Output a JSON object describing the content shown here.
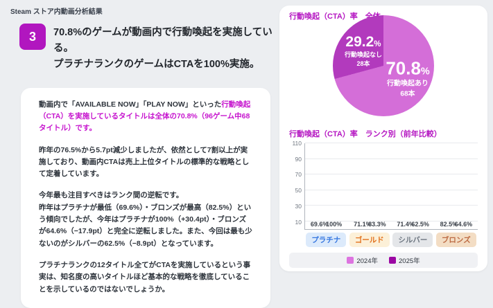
{
  "colors": {
    "accent": "#b517c2",
    "highlight": "#c614ce",
    "badge_bg": "#b116bf",
    "pie_light": "#d46ed8",
    "pie_dark": "#b23abd",
    "bar_2024": "#dd74e0",
    "bar_2025": "#9b07a3",
    "page_bg": "#eceef1"
  },
  "header": {
    "eyebrow": "Steam ストア内動画分析結果",
    "badge": "3",
    "title_line1": "70.8%のゲームが動画内で行動喚起を実施している。",
    "title_line2": "プラチナランクのゲームはCTAを100%実施。"
  },
  "body": {
    "p1_normal": "動画内で「AVAILABLE NOW」「PLAY NOW」といった",
    "p1_highlight": "行動喚起（CTA）を実施しているタイトルは全体の70.8%（96ゲーム中68タイトル）です。",
    "p2": "昨年の76.5%から5.7pt減少しましたが、依然として7割以上が実施しており、動画内CTAは売上上位タイトルの標準的な戦略として定着しています。",
    "p3_line1": "今年最も注目すべきはランク間の逆転です。",
    "p3_rest": "昨年はプラチナが最低（69.6%）・ブロンズが最高（82.5%）という傾向でしたが、今年はプラチナが100%（+30.4pt）・ブロンズが64.6%（−17.9pt）と完全に逆転しました。また、今回は最も少ないのがシルバーの62.5%（−8.9pt）となっています。",
    "p4": "プラチナランクの12タイトル全てがCTAを実施しているという事実は、知名度の高いタイトルほど基本的な戦略を徹底していることを示しているのではないでしょうか。"
  },
  "chart_data": [
    {
      "type": "pie",
      "title": "行動喚起（CTA）率　全体",
      "start_angle_deg": 0,
      "direction": "clockwise",
      "slices": [
        {
          "label": "行動喚起あり",
          "count_label": "68本",
          "pct": 70.8,
          "color": "#d46ed8"
        },
        {
          "label": "行動喚起なし",
          "count_label": "28本",
          "pct": 29.2,
          "color": "#b23abd"
        }
      ]
    },
    {
      "type": "bar",
      "title": "行動喚起（CTA）率　ランク別（前年比較）",
      "categories": [
        "プラチナ",
        "ゴールド",
        "シルバー",
        "ブロンズ"
      ],
      "series": [
        {
          "name": "2024年",
          "color": "#dd74e0",
          "values": [
            69.6,
            71.1,
            71.4,
            82.5
          ],
          "labels": [
            "69.6%",
            "71.1%",
            "71.4%",
            "82.5%"
          ]
        },
        {
          "name": "2025年",
          "color": "#9b07a3",
          "values": [
            100,
            83.3,
            62.5,
            64.6
          ],
          "labels": [
            "100%",
            "83.3%",
            "62.5%",
            "64.6%"
          ]
        }
      ],
      "ylim": [
        0,
        110
      ],
      "yticks": [
        10,
        30,
        50,
        70,
        90,
        110
      ],
      "grid": true,
      "legend_position": "bottom",
      "category_styles": [
        {
          "bg": "#dceafb",
          "color": "#3576e0"
        },
        {
          "bg": "#fcf0d8",
          "color": "#e2711d"
        },
        {
          "bg": "#e4e6e9",
          "color": "#6d7680"
        },
        {
          "bg": "#f3ddc4",
          "color": "#bd6a42"
        }
      ]
    }
  ]
}
